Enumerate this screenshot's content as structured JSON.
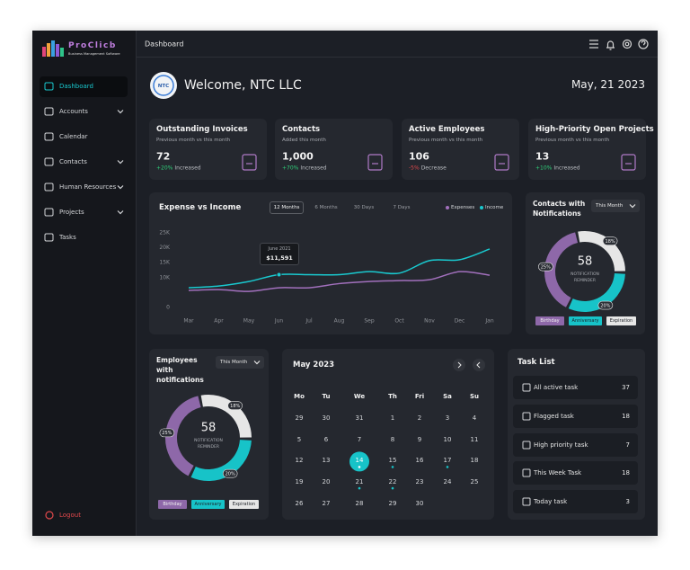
{
  "brand": {
    "name": "ProClicb",
    "tagline": "Business Management Software"
  },
  "sidebar": {
    "items": [
      {
        "label": "Dashboard",
        "active": true
      },
      {
        "label": "Accounts",
        "expandable": true
      },
      {
        "label": "Calendar"
      },
      {
        "label": "Contacts",
        "expandable": true
      },
      {
        "label": "Human Resources",
        "expandable": true
      },
      {
        "label": "Projects",
        "expandable": true
      },
      {
        "label": "Tasks"
      }
    ],
    "logout": "Logout"
  },
  "header": {
    "title": "Dashboard"
  },
  "welcome": {
    "logo": "NTC",
    "greeting": "Welcome, NTC LLC",
    "date": "May, 21 2023"
  },
  "stats": [
    {
      "title": "Outstanding Invoices",
      "subtitle": "Previous month vs this month",
      "value": 72,
      "change": "+20%",
      "change_text": "Increased",
      "trend": "up"
    },
    {
      "title": "Contacts",
      "subtitle": "Added this month",
      "value": "1,000",
      "change": "+70%",
      "change_text": "Increased",
      "trend": "up"
    },
    {
      "title": "Active Employees",
      "subtitle": "Previous month vs this month",
      "value": 106,
      "change": "-5%",
      "change_text": "Decrease",
      "trend": "down"
    },
    {
      "title": "High-Priority Open Projects",
      "subtitle": "Previous month vs this month",
      "value": 13,
      "change": "+10%",
      "change_text": "Increased",
      "trend": "up"
    }
  ],
  "chart_data": [
    {
      "type": "line",
      "title": "Expense vs Income",
      "tabs": [
        "12 Months",
        "6 Months",
        "30 Days",
        "7 Days"
      ],
      "active_tab": 0,
      "categories": [
        "Mar",
        "Apr",
        "May",
        "Jun",
        "Jul",
        "Aug",
        "Sep",
        "Oct",
        "Nov",
        "Dec",
        "Jan"
      ],
      "series": [
        {
          "name": "Expenses",
          "color": "#a270bd",
          "values": [
            5700,
            6000,
            5400,
            6600,
            6600,
            8000,
            8700,
            9000,
            9300,
            12000,
            10800
          ]
        },
        {
          "name": "Income",
          "color": "#19c9cf",
          "values": [
            6600,
            7200,
            8700,
            11000,
            11000,
            11000,
            12000,
            11500,
            15700,
            16000,
            19600
          ]
        }
      ],
      "ylim": [
        0,
        25000
      ],
      "yticks": [
        0,
        {
          "value": 10000,
          "label": "10K"
        },
        {
          "value": 15000,
          "label": "15K"
        },
        {
          "value": 20000,
          "label": "20K"
        },
        {
          "value": 25000,
          "label": "25K"
        }
      ],
      "grid": false,
      "legend": "top-right",
      "annotation": {
        "title": "June 2021",
        "text": "$11,591"
      }
    },
    {
      "type": "donut",
      "title": "Contacts with Notifications",
      "filter": "This Month",
      "center_value": 58,
      "center_label": "NOTIFICATION REMINDER",
      "categories": [
        "Expiration",
        "Anniversary",
        "Birthday"
      ],
      "values": [
        18,
        20,
        25
      ],
      "value_labels": [
        "18%",
        "20%",
        "25%"
      ],
      "colors": [
        "#e6e6e6",
        "#17c3c8",
        "#8e68a9"
      ],
      "legend_order": [
        2,
        1,
        0
      ]
    },
    {
      "type": "donut",
      "title": "Employees with notifications",
      "filter": "This Month",
      "center_value": 58,
      "center_label": "NOTIFICATION REMINDER",
      "categories": [
        "Expiration",
        "Anniversary",
        "Birthday"
      ],
      "values": [
        18,
        20,
        25
      ],
      "value_labels": [
        "18%",
        "20%",
        "25%"
      ],
      "colors": [
        "#e6e6e6",
        "#17c3c8",
        "#8e68a9"
      ],
      "legend_order": [
        2,
        1,
        0
      ]
    }
  ],
  "calendar": {
    "title": "May 2023",
    "weekdays": [
      "Mo",
      "Tu",
      "We",
      "Th",
      "Fri",
      "Sa",
      "Su"
    ],
    "weeks": [
      [
        29,
        30,
        31,
        1,
        2,
        3,
        4
      ],
      [
        5,
        6,
        7,
        8,
        9,
        10,
        11
      ],
      [
        12,
        13,
        {
          "day": 14,
          "selected": true,
          "event": true
        },
        {
          "day": 15,
          "event": true
        },
        16,
        {
          "day": 17,
          "event": true
        },
        18
      ],
      [
        19,
        20,
        {
          "day": 21,
          "event": true
        },
        {
          "day": 22,
          "event": true
        },
        23,
        24,
        25
      ],
      [
        26,
        27,
        28,
        29,
        30
      ]
    ]
  },
  "tasks": {
    "title": "Task List",
    "items": [
      {
        "label": "All active task",
        "count": 37
      },
      {
        "label": "Flagged task",
        "count": 18
      },
      {
        "label": "High priority task",
        "count": 7
      },
      {
        "label": "This Week Task",
        "count": 18
      },
      {
        "label": "Today task",
        "count": 3
      }
    ]
  }
}
